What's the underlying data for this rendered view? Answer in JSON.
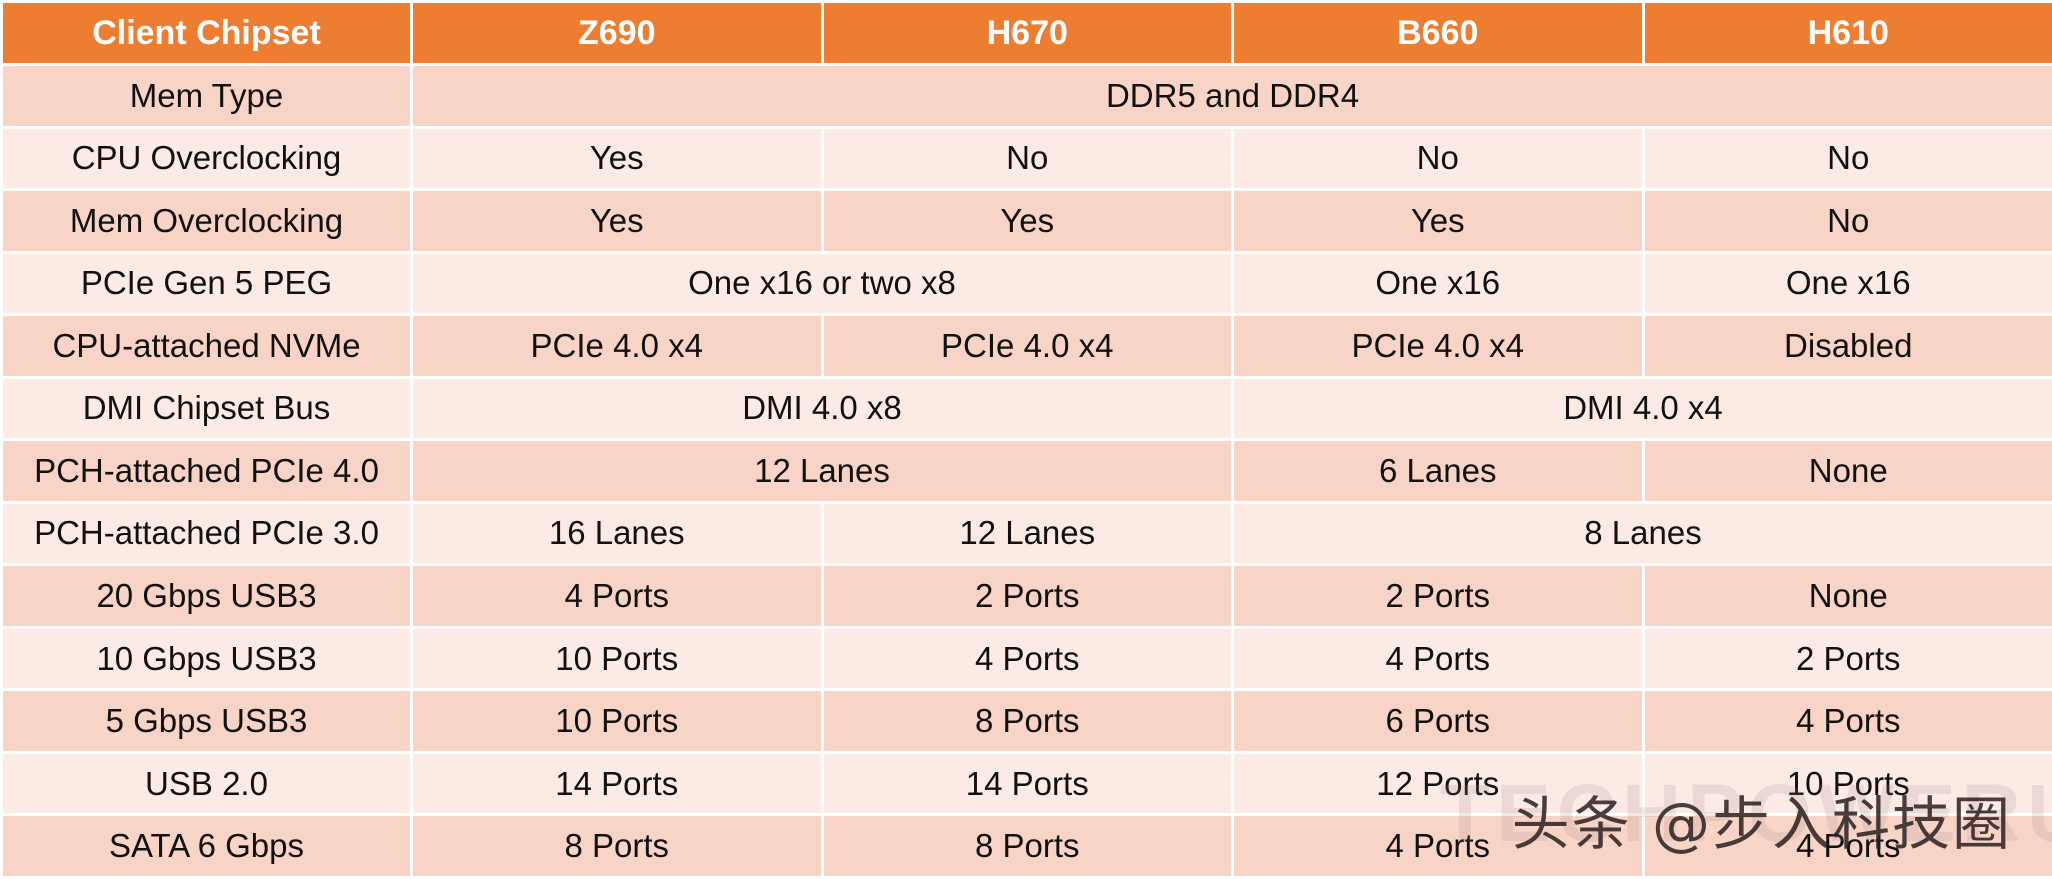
{
  "table": {
    "headers": [
      "Client Chipset",
      "Z690",
      "H670",
      "B660",
      "H610"
    ],
    "rows": [
      {
        "label": "Mem Type",
        "cells": [
          {
            "text": "DDR5 and DDR4",
            "span": 4
          }
        ]
      },
      {
        "label": "CPU Overclocking",
        "cells": [
          {
            "text": "Yes",
            "span": 1
          },
          {
            "text": "No",
            "span": 1
          },
          {
            "text": "No",
            "span": 1
          },
          {
            "text": "No",
            "span": 1
          }
        ]
      },
      {
        "label": "Mem Overclocking",
        "cells": [
          {
            "text": "Yes",
            "span": 1
          },
          {
            "text": "Yes",
            "span": 1
          },
          {
            "text": "Yes",
            "span": 1
          },
          {
            "text": "No",
            "span": 1
          }
        ]
      },
      {
        "label": "PCIe Gen 5 PEG",
        "cells": [
          {
            "text": "One x16 or two x8",
            "span": 2
          },
          {
            "text": "One x16",
            "span": 1
          },
          {
            "text": "One x16",
            "span": 1
          }
        ]
      },
      {
        "label": "CPU-attached NVMe",
        "cells": [
          {
            "text": "PCIe 4.0 x4",
            "span": 1
          },
          {
            "text": "PCIe 4.0 x4",
            "span": 1
          },
          {
            "text": "PCIe 4.0 x4",
            "span": 1
          },
          {
            "text": "Disabled",
            "span": 1
          }
        ]
      },
      {
        "label": "DMI Chipset Bus",
        "cells": [
          {
            "text": "DMI 4.0 x8",
            "span": 2
          },
          {
            "text": "DMI 4.0 x4",
            "span": 2
          }
        ]
      },
      {
        "label": "PCH-attached PCIe 4.0",
        "cells": [
          {
            "text": "12 Lanes",
            "span": 2
          },
          {
            "text": "6 Lanes",
            "span": 1
          },
          {
            "text": "None",
            "span": 1
          }
        ]
      },
      {
        "label": "PCH-attached PCIe 3.0",
        "cells": [
          {
            "text": "16 Lanes",
            "span": 1
          },
          {
            "text": "12 Lanes",
            "span": 1
          },
          {
            "text": "8 Lanes",
            "span": 2
          }
        ]
      },
      {
        "label": "20 Gbps USB3",
        "cells": [
          {
            "text": "4 Ports",
            "span": 1
          },
          {
            "text": "2 Ports",
            "span": 1
          },
          {
            "text": "2 Ports",
            "span": 1
          },
          {
            "text": "None",
            "span": 1
          }
        ]
      },
      {
        "label": "10 Gbps USB3",
        "cells": [
          {
            "text": "10 Ports",
            "span": 1
          },
          {
            "text": "4 Ports",
            "span": 1
          },
          {
            "text": "4 Ports",
            "span": 1
          },
          {
            "text": "2 Ports",
            "span": 1
          }
        ]
      },
      {
        "label": "5 Gbps USB3",
        "cells": [
          {
            "text": "10 Ports",
            "span": 1
          },
          {
            "text": "8 Ports",
            "span": 1
          },
          {
            "text": "6 Ports",
            "span": 1
          },
          {
            "text": "4 Ports",
            "span": 1
          }
        ]
      },
      {
        "label": "USB 2.0",
        "cells": [
          {
            "text": "14 Ports",
            "span": 1
          },
          {
            "text": "14 Ports",
            "span": 1
          },
          {
            "text": "12 Ports",
            "span": 1
          },
          {
            "text": "10 Ports",
            "span": 1
          }
        ]
      },
      {
        "label": "SATA 6 Gbps",
        "cells": [
          {
            "text": "8 Ports",
            "span": 1
          },
          {
            "text": "8 Ports",
            "span": 1
          },
          {
            "text": "4 Ports",
            "span": 1
          },
          {
            "text": "4 Ports",
            "span": 1
          }
        ]
      }
    ]
  },
  "watermark": {
    "caption": "头条 @步入科技圈",
    "logo_text": "TECHPOWERUP"
  },
  "colors": {
    "header_bg": "#ED7D31",
    "row_dark": "#F8D4C7",
    "row_light": "#FCEAE5"
  }
}
